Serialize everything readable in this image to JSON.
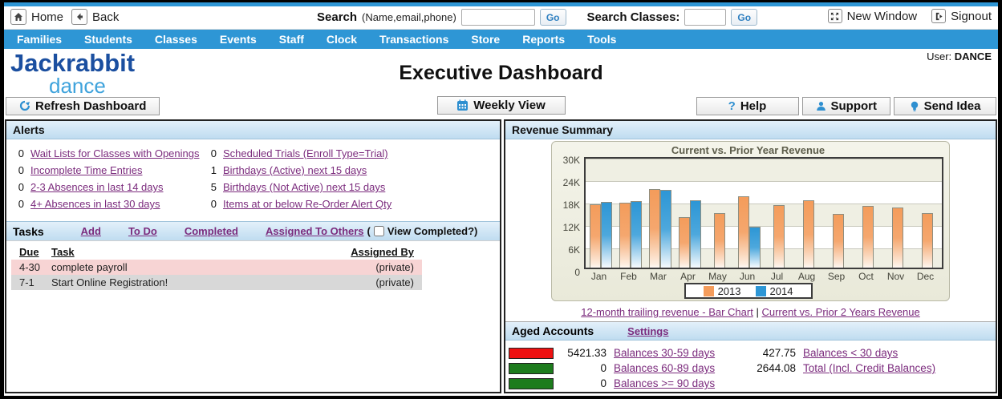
{
  "topbar": {
    "home": "Home",
    "back": "Back",
    "search_label": "Search",
    "search_hint": "(Name,email,phone)",
    "go": "Go",
    "search_classes_label": "Search Classes:",
    "new_window": "New Window",
    "signout": "Signout"
  },
  "nav": {
    "items": [
      "Families",
      "Students",
      "Classes",
      "Events",
      "Staff",
      "Clock",
      "Transactions",
      "Store",
      "Reports",
      "Tools"
    ],
    "user_label": "User:",
    "user_value": "DANCE"
  },
  "header": {
    "logo_line1": "Jackrabbit",
    "logo_line2": "dance",
    "title": "Executive Dashboard",
    "refresh": "Refresh Dashboard",
    "weekly": "Weekly View",
    "help": "Help",
    "support": "Support",
    "send_idea": "Send Idea",
    "help_glyph": "?"
  },
  "alerts": {
    "title": "Alerts",
    "items": [
      {
        "count": "0",
        "label": "Wait Lists for Classes with Openings"
      },
      {
        "count": "0",
        "label": "Incomplete Time Entries"
      },
      {
        "count": "0",
        "label": "2-3 Absences in last 14 days"
      },
      {
        "count": "0",
        "label": "4+ Absences in last 30 days"
      },
      {
        "count": "0",
        "label": "Scheduled Trials (Enroll Type=Trial)"
      },
      {
        "count": "1",
        "label": "Birthdays (Active) next 15 days"
      },
      {
        "count": "5",
        "label": "Birthdays (Not Active) next 15 days"
      },
      {
        "count": "0",
        "label": "Items at or below Re-Order Alert Qty"
      }
    ]
  },
  "tasks": {
    "title": "Tasks",
    "links": [
      "Add",
      "To Do",
      "Completed",
      "Assigned To Others"
    ],
    "paren_open": "(",
    "view_completed": "View Completed?)",
    "columns": [
      "Due",
      "Task",
      "Assigned By"
    ],
    "rows": [
      {
        "due": "4-30",
        "task": "complete payroll",
        "assigned_by": "(private)"
      },
      {
        "due": "7-1",
        "task": "Start Online Registration!",
        "assigned_by": "(private)"
      }
    ]
  },
  "revenue": {
    "title": "Revenue Summary",
    "link1": "12-month trailing revenue - Bar Chart",
    "separator": "|",
    "link2": "Current vs. Prior 2 Years Revenue"
  },
  "chart_data": {
    "type": "bar",
    "title": "Current vs. Prior Year Revenue",
    "categories": [
      "Jan",
      "Feb",
      "Mar",
      "Apr",
      "May",
      "Jun",
      "Jul",
      "Aug",
      "Sep",
      "Oct",
      "Nov",
      "Dec"
    ],
    "series": [
      {
        "name": "2013",
        "color": "#f49c5b",
        "values": [
          16900,
          17300,
          21000,
          13600,
          14500,
          19100,
          16800,
          17900,
          14300,
          16400,
          16100,
          14600
        ]
      },
      {
        "name": "2014",
        "color": "#2d96d5",
        "values": [
          17500,
          17800,
          20800,
          18000,
          null,
          10900,
          null,
          null,
          null,
          null,
          null,
          null
        ]
      }
    ],
    "xlabel": "",
    "ylabel": "",
    "ylim": [
      0,
      30000
    ],
    "yticks": [
      "30K",
      "24K",
      "18K",
      "12K",
      "6K",
      "0"
    ],
    "grid": true,
    "legend_position": "bottom"
  },
  "aged": {
    "title": "Aged Accounts",
    "settings": "Settings",
    "left_rows": [
      {
        "swatch": "#ee1111",
        "amount": "5421.33",
        "label": "Balances 30-59 days"
      },
      {
        "swatch": "#1d7c1d",
        "amount": "0",
        "label": "Balances 60-89 days"
      },
      {
        "swatch": "#1d7c1d",
        "amount": "0",
        "label": "Balances >= 90 days"
      }
    ],
    "right_rows": [
      {
        "amount": "427.75",
        "label": "Balances < 30 days"
      },
      {
        "amount": "2644.08",
        "label": "Total (Incl. Credit Balances)"
      }
    ]
  }
}
